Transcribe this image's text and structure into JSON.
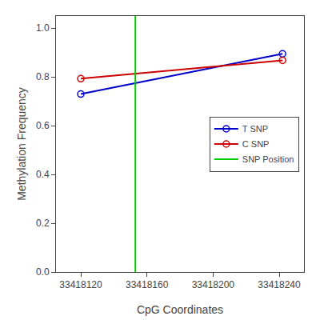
{
  "chart_data": {
    "type": "line",
    "xlabel": "CpG Coordinates",
    "ylabel": "Methylation Frequency",
    "x": [
      33418120,
      33418242
    ],
    "series": [
      {
        "name": "T SNP",
        "color": "#0000CC",
        "marker": "open circle",
        "values": [
          0.73,
          0.895
        ]
      },
      {
        "name": "C SNP",
        "color": "#CC0000",
        "marker": "open circle",
        "values": [
          0.793,
          0.868
        ]
      },
      {
        "name": "SNP Position",
        "color": "#00CC00",
        "type": "vline",
        "x": 33418153
      }
    ],
    "xlim": [
      33418105,
      33418255
    ],
    "ylim": [
      0.0,
      1.05
    ],
    "xticks": [
      33418120,
      33418160,
      33418200,
      33418240
    ],
    "yticks": [
      {
        "value": 0.0,
        "label": "0.0"
      },
      0.2,
      0.4,
      0.6,
      0.8,
      {
        "value": 1.0,
        "label": "1.0"
      }
    ],
    "grid": false,
    "legend": "center right"
  }
}
